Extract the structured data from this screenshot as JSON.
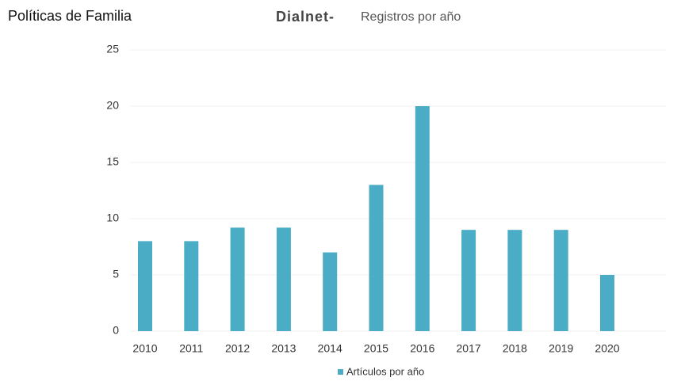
{
  "header": {
    "title": "Políticas de Familia"
  },
  "chart_data": {
    "type": "bar",
    "title": "Dialnet-",
    "subtitle": "Registros por año",
    "categories": [
      "2010",
      "2011",
      "2012",
      "2013",
      "2014",
      "2015",
      "2016",
      "2017",
      "2018",
      "2019",
      "2020"
    ],
    "series": [
      {
        "name": "Artículos por año",
        "color": "#4bacc6",
        "values": [
          8,
          8,
          9.2,
          9.2,
          7,
          13,
          20,
          9,
          9,
          9,
          5
        ]
      }
    ],
    "ylim": [
      0,
      25
    ],
    "yticks": [
      0,
      5,
      10,
      15,
      20,
      25
    ],
    "grid": true,
    "legend": "bottom"
  }
}
